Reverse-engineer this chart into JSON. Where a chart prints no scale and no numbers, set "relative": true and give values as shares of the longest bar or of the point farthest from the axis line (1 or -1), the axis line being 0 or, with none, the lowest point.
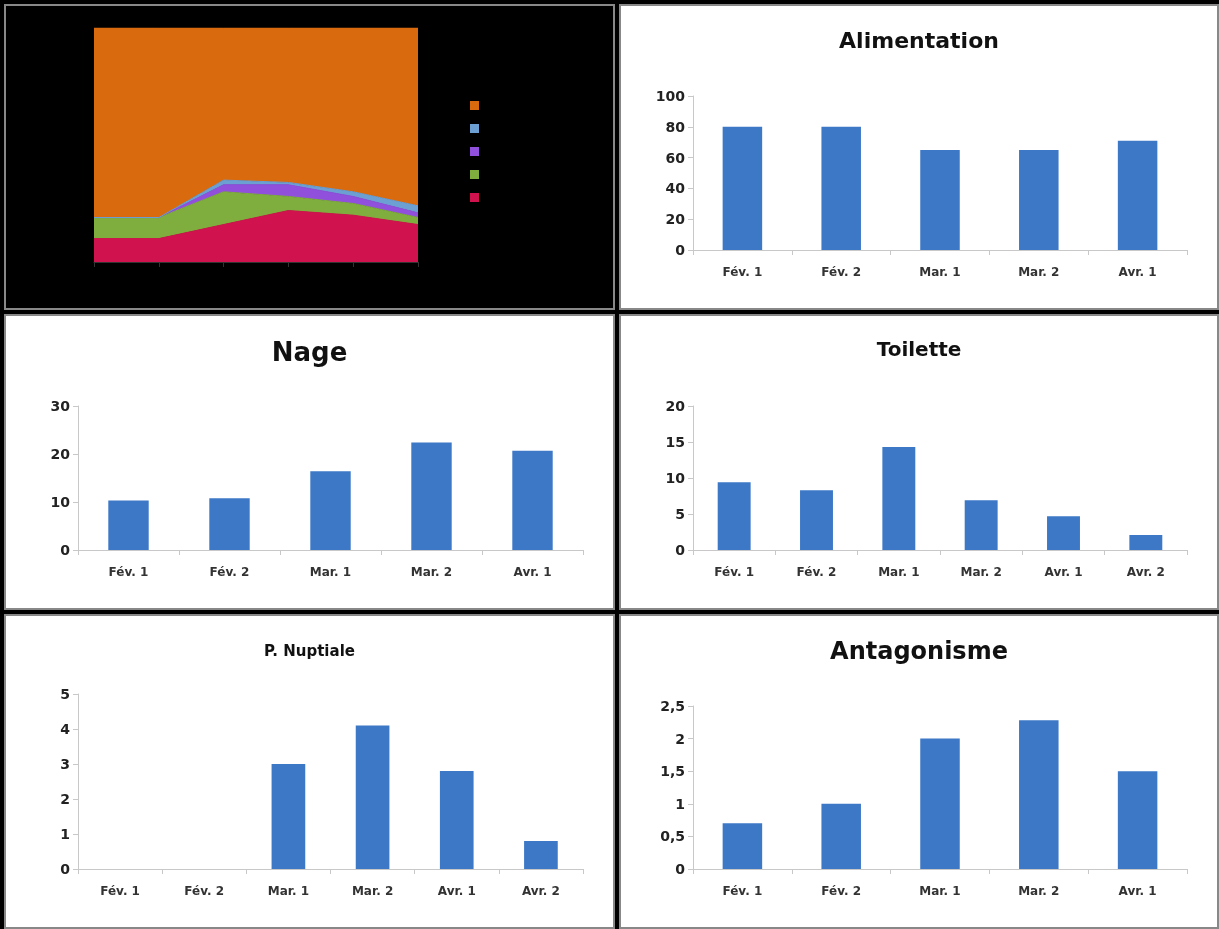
{
  "chart_data": [
    {
      "type": "area",
      "relative": true,
      "stacked": true,
      "categories": [
        null,
        null,
        null,
        null,
        null,
        null
      ],
      "series": [
        {
          "color": "#d0134e",
          "values": [
            0.1,
            0.1,
            0.16,
            0.22,
            0.2,
            0.16
          ]
        },
        {
          "color": "#7fae3e",
          "values": [
            0.09,
            0.09,
            0.14,
            0.06,
            0.05,
            0.03
          ]
        },
        {
          "color": "#9050dc",
          "values": [
            0,
            0,
            0.03,
            0.05,
            0.03,
            0.02
          ]
        },
        {
          "color": "#6c9fd2",
          "values": [
            0,
            0,
            0.02,
            0.01,
            0.02,
            0.03
          ]
        },
        {
          "color": "#d96a0e",
          "values": [
            0.81,
            0.81,
            0.65,
            0.66,
            0.7,
            0.76
          ]
        }
      ]
    },
    {
      "type": "bar",
      "title": "Alimentation",
      "categories": [
        "Fév. 1",
        "Fév. 2",
        "Mar. 1",
        "Mar. 2",
        "Avr. 1"
      ],
      "values": [
        80,
        80,
        65,
        65,
        71
      ],
      "color": "#3d78c6",
      "ylim": [
        0,
        100
      ],
      "yticks": [
        0,
        20,
        40,
        60,
        80,
        100
      ]
    },
    {
      "type": "bar",
      "title": "Nage",
      "categories": [
        "Fév. 1",
        "Fév. 2",
        "Mar. 1",
        "Mar. 2",
        "Avr. 1"
      ],
      "values": [
        10.3,
        10.8,
        16.4,
        22.4,
        20.7
      ],
      "color": "#3d78c6",
      "ylim": [
        0,
        30
      ],
      "yticks": [
        0,
        10,
        20,
        30
      ]
    },
    {
      "type": "bar",
      "title": "Toilette",
      "categories": [
        "Fév. 1",
        "Fév. 2",
        "Mar. 1",
        "Mar. 2",
        "Avr. 1",
        "Avr. 2"
      ],
      "values": [
        9.4,
        8.3,
        14.3,
        6.9,
        4.7,
        2.1
      ],
      "color": "#3d78c6",
      "ylim": [
        0,
        20
      ],
      "yticks": [
        0,
        5,
        10,
        15,
        20
      ]
    },
    {
      "type": "bar",
      "title": "P. Nuptiale",
      "categories": [
        "Fév. 1",
        "Fév. 2",
        "Mar. 1",
        "Mar. 2",
        "Avr. 1",
        "Avr. 2"
      ],
      "values": [
        0,
        0,
        3.0,
        4.1,
        2.8,
        0.8
      ],
      "color": "#3d78c6",
      "ylim": [
        0,
        5
      ],
      "yticks": [
        0,
        1,
        2,
        3,
        4,
        5
      ]
    },
    {
      "type": "bar",
      "title": "Antagonisme",
      "categories": [
        "Fév. 1",
        "Fév. 2",
        "Mar. 1",
        "Mar. 2",
        "Avr. 1"
      ],
      "values": [
        0.7,
        1.0,
        2.0,
        2.28,
        1.5
      ],
      "color": "#3d78c6",
      "ylim": [
        0,
        2.5
      ],
      "yticks": [
        0,
        {
          "value": 0.5,
          "label": "0,5"
        },
        1,
        {
          "value": 1.5,
          "label": "1,5"
        },
        2,
        {
          "value": 2.5,
          "label": "2,5"
        }
      ]
    }
  ]
}
